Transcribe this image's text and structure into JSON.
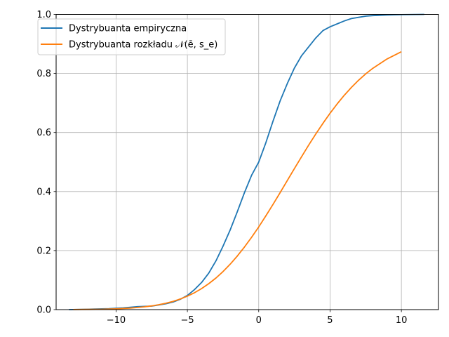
{
  "chart_data": {
    "type": "line",
    "title": "",
    "xlabel": "",
    "ylabel": "",
    "xlim": [
      -14.2,
      12.6
    ],
    "ylim": [
      0,
      1
    ],
    "xticks": [
      -10,
      -5,
      0,
      5,
      10
    ],
    "xtick_labels": [
      "−10",
      "−5",
      "0",
      "5",
      "10"
    ],
    "yticks": [
      0,
      0.2,
      0.4,
      0.6,
      0.8,
      1.0
    ],
    "ytick_labels": [
      "0.0",
      "0.2",
      "0.4",
      "0.6",
      "0.8",
      "1.0"
    ],
    "grid": true,
    "legend_position": "top-left",
    "series": [
      {
        "name": "Dystrybuanta empiryczna",
        "color": "#1f77b4",
        "x": [
          -13.3,
          -11.5,
          -10.5,
          -9.5,
          -8.5,
          -7.5,
          -7.0,
          -6.5,
          -6.0,
          -5.5,
          -5.0,
          -4.5,
          -4.0,
          -3.5,
          -3.0,
          -2.5,
          -2.0,
          -1.5,
          -1.0,
          -0.5,
          0.0,
          0.5,
          1.0,
          1.5,
          2.0,
          2.5,
          3.0,
          3.5,
          4.0,
          4.5,
          5.0,
          5.5,
          6.0,
          6.5,
          7.0,
          7.5,
          8.0,
          9.0,
          10.0,
          11.6
        ],
        "y": [
          0.0,
          0.002,
          0.003,
          0.006,
          0.01,
          0.012,
          0.016,
          0.02,
          0.026,
          0.035,
          0.048,
          0.068,
          0.092,
          0.124,
          0.165,
          0.215,
          0.27,
          0.332,
          0.396,
          0.455,
          0.5,
          0.565,
          0.638,
          0.707,
          0.765,
          0.818,
          0.86,
          0.89,
          0.92,
          0.945,
          0.958,
          0.968,
          0.978,
          0.986,
          0.99,
          0.994,
          0.996,
          0.998,
          0.999,
          1.0
        ]
      },
      {
        "name": "Dystrybuanta rozkładu 𝒩(ē, s_e)",
        "color": "#ff7f0e",
        "x": [
          -13.0,
          -12.0,
          -11.0,
          -10.0,
          -9.0,
          -8.0,
          -7.5,
          -7.0,
          -6.5,
          -6.0,
          -5.5,
          -5.0,
          -4.5,
          -4.0,
          -3.5,
          -3.0,
          -2.5,
          -2.0,
          -1.5,
          -1.0,
          -0.5,
          0.0,
          0.5,
          1.0,
          1.5,
          2.0,
          2.5,
          3.0,
          3.5,
          4.0,
          4.5,
          5.0,
          5.5,
          6.0,
          6.5,
          7.0,
          7.5,
          8.0,
          9.0,
          10.0
        ],
        "y": [
          0.0003,
          0.0006,
          0.0013,
          0.0026,
          0.005,
          0.0094,
          0.0125,
          0.0166,
          0.0217,
          0.0281,
          0.036,
          0.0457,
          0.0574,
          0.0714,
          0.0879,
          0.107,
          0.129,
          0.1539,
          0.1816,
          0.2119,
          0.2449,
          0.2801,
          0.3174,
          0.3563,
          0.3963,
          0.4368,
          0.4775,
          0.5177,
          0.5569,
          0.5948,
          0.631,
          0.665,
          0.6968,
          0.7262,
          0.7529,
          0.777,
          0.7985,
          0.8176,
          0.8493,
          0.8735
        ]
      }
    ],
    "legend_labels": [
      "Dystrybuanta empiryczna",
      "Dystrybuanta rozkładu 𝒩(ē, s_e)"
    ]
  }
}
